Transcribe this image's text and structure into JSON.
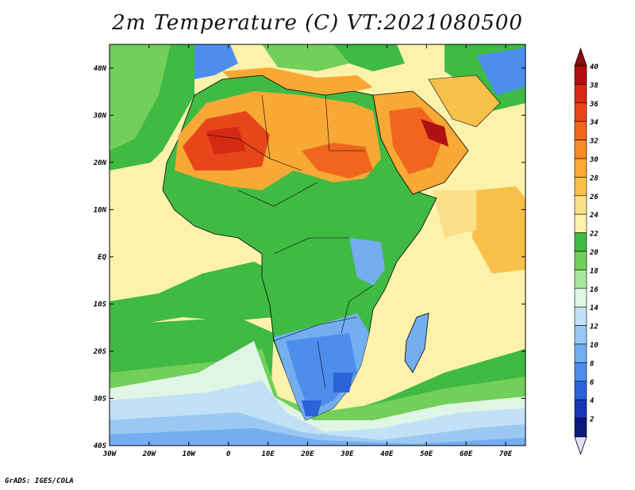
{
  "title": "2m Temperature (C) VT:2021080500",
  "credit": "GrADS: IGES/COLA",
  "map": {
    "lon_range": [
      -30,
      75
    ],
    "lat_range": [
      -40,
      45
    ],
    "lon_ticks": [
      {
        "v": -30,
        "label": "30W"
      },
      {
        "v": -20,
        "label": "20W"
      },
      {
        "v": -10,
        "label": "10W"
      },
      {
        "v": 0,
        "label": "0"
      },
      {
        "v": 10,
        "label": "10E"
      },
      {
        "v": 20,
        "label": "20E"
      },
      {
        "v": 30,
        "label": "30E"
      },
      {
        "v": 40,
        "label": "40E"
      },
      {
        "v": 50,
        "label": "50E"
      },
      {
        "v": 60,
        "label": "60E"
      },
      {
        "v": 70,
        "label": "70E"
      }
    ],
    "lat_ticks": [
      {
        "v": 40,
        "label": "40N"
      },
      {
        "v": 30,
        "label": "30N"
      },
      {
        "v": 20,
        "label": "20N"
      },
      {
        "v": 10,
        "label": "10N"
      },
      {
        "v": 0,
        "label": "EQ"
      },
      {
        "v": -10,
        "label": "10S"
      },
      {
        "v": -20,
        "label": "20S"
      },
      {
        "v": -30,
        "label": "30S"
      },
      {
        "v": -40,
        "label": "40S"
      }
    ]
  },
  "colorbar": {
    "labels": [
      "40",
      "38",
      "36",
      "34",
      "32",
      "30",
      "28",
      "26",
      "24",
      "22",
      "20",
      "18",
      "16",
      "14",
      "12",
      "10",
      "8",
      "6",
      "4",
      "2"
    ],
    "bins_top_down": [
      "#b01010",
      "#d42a14",
      "#e8461a",
      "#f0661e",
      "#f58c28",
      "#f8a935",
      "#f9c049",
      "#fcdf88",
      "#fcf2ac",
      "#3fba43",
      "#72cf5a",
      "#a9e69b",
      "#dff6e4",
      "#c2e1f7",
      "#9ac8f2",
      "#74aef0",
      "#4d8eec",
      "#2a62d9",
      "#1737b3",
      "#0b1a7a"
    ],
    "over_color": "#8c0c0c",
    "under_color": "#e6e0ff"
  }
}
